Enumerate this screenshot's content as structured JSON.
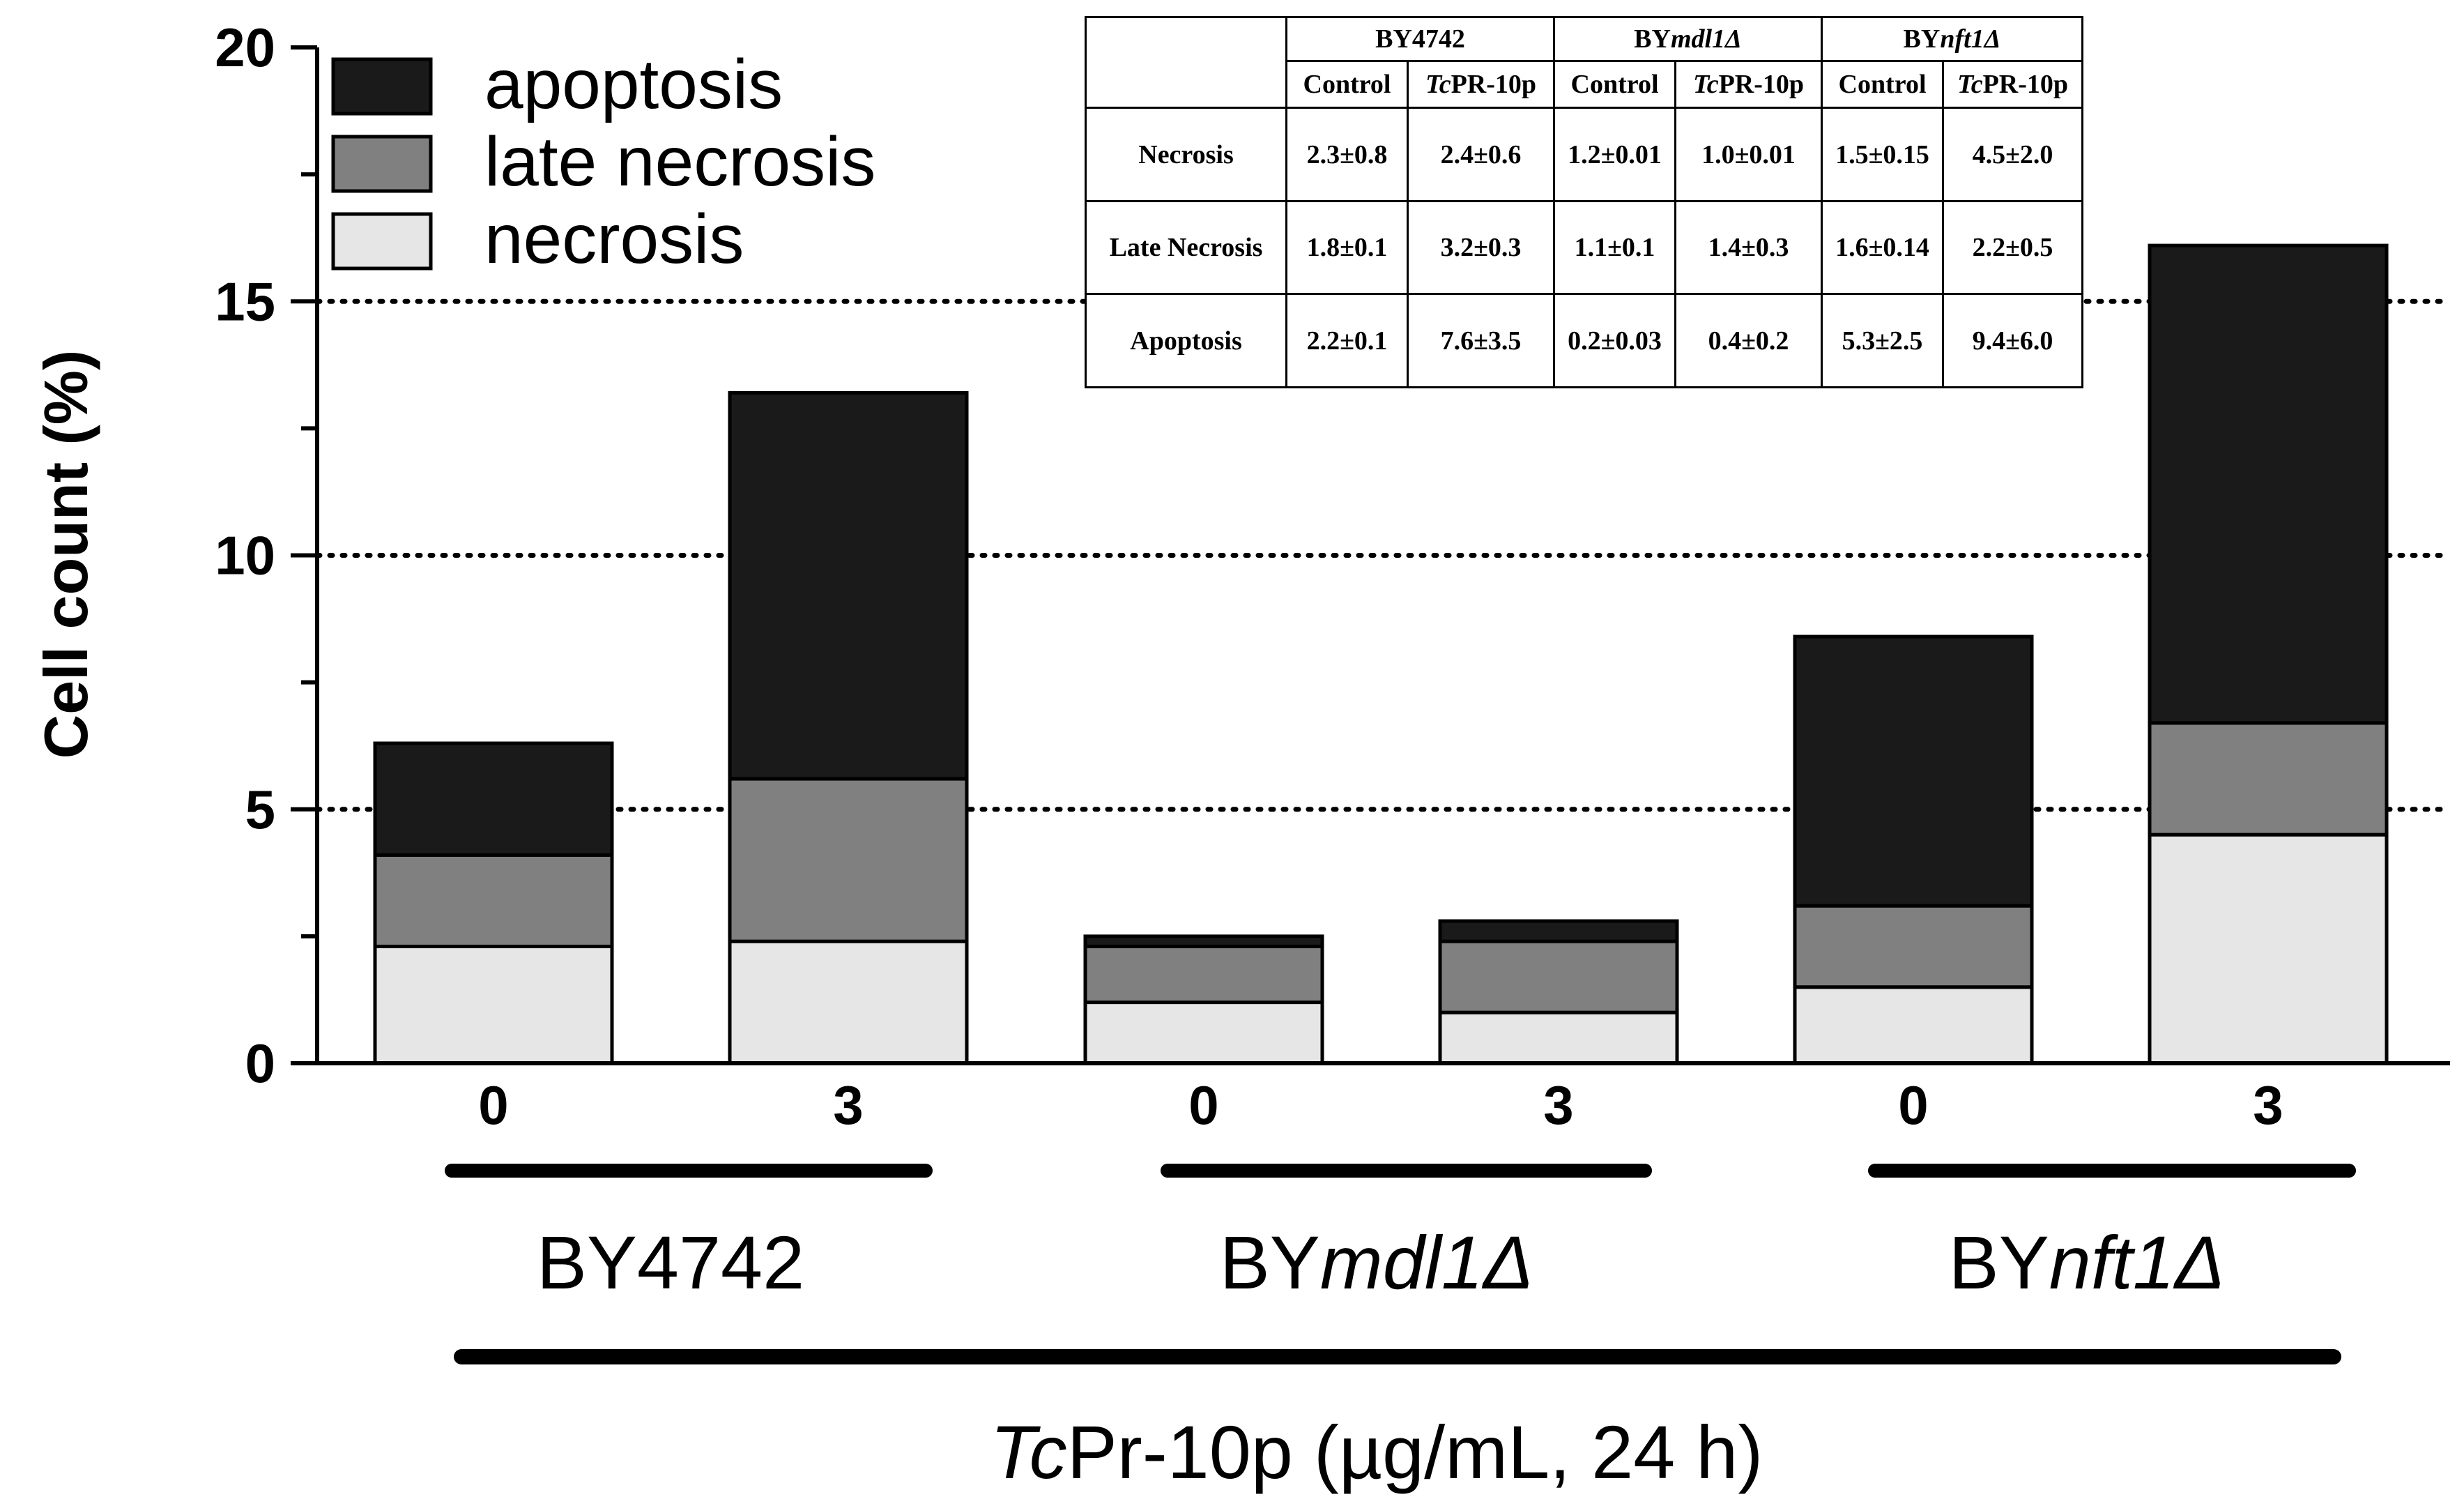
{
  "chart_data": {
    "type": "bar",
    "stacked": true,
    "categories": [
      "0",
      "3",
      "0",
      "3",
      "0",
      "3"
    ],
    "groups": [
      {
        "name": "BY",
        "suffix": "",
        "strain_label": "BY4742"
      },
      {
        "name": "BY",
        "suffix": "mdl1Δ",
        "strain_label": "BYmdl1Δ"
      },
      {
        "name": "BY",
        "suffix": "nft1Δ",
        "strain_label": "BYnft1Δ"
      }
    ],
    "series": [
      {
        "name": "necrosis",
        "color": "#e6e6e6",
        "values": [
          2.3,
          2.4,
          1.2,
          1.0,
          1.5,
          4.5
        ]
      },
      {
        "name": "late necrosis",
        "color": "#808080",
        "values": [
          1.8,
          3.2,
          1.1,
          1.4,
          1.6,
          2.2
        ]
      },
      {
        "name": "apoptosis",
        "color": "#1a1a1a",
        "values": [
          2.2,
          7.6,
          0.2,
          0.4,
          5.3,
          9.4
        ]
      }
    ],
    "legend_order": [
      "apoptosis",
      "late necrosis",
      "necrosis"
    ],
    "legend_position": "top-left",
    "ylabel": "Cell count (%)",
    "xlabel_italic": "Tc",
    "xlabel_rest": "Pr-10p (µg/mL, 24 h)",
    "ylim": [
      0,
      20
    ],
    "yticks": [
      0,
      5,
      10,
      15,
      20
    ],
    "gridlines": [
      5,
      10,
      15
    ],
    "grid_style": "dotted"
  },
  "inset_table": {
    "strains": [
      {
        "prefix": "BY",
        "italic": "",
        "plain": "4742"
      },
      {
        "prefix": "BY",
        "italic": "mdl1Δ",
        "plain": ""
      },
      {
        "prefix": "BY",
        "italic": "nft1Δ",
        "plain": ""
      }
    ],
    "subheaders": {
      "control": "Control",
      "treat_italic": "Tc",
      "treat_rest": "PR-10p"
    },
    "rows": [
      {
        "label": "Necrosis",
        "values": [
          "2.3±0.8",
          "2.4±0.6",
          "1.2±0.01",
          "1.0±0.01",
          "1.5±0.15",
          "4.5±2.0"
        ]
      },
      {
        "label": "Late Necrosis",
        "values": [
          "1.8±0.1",
          "3.2±0.3",
          "1.1±0.1",
          "1.4±0.3",
          "1.6±0.14",
          "2.2±0.5"
        ]
      },
      {
        "label": "Apoptosis",
        "values": [
          "2.2±0.1",
          "7.6±3.5",
          "0.2±0.03",
          "0.4±0.2",
          "5.3±2.5",
          "9.4±6.0"
        ]
      }
    ]
  }
}
